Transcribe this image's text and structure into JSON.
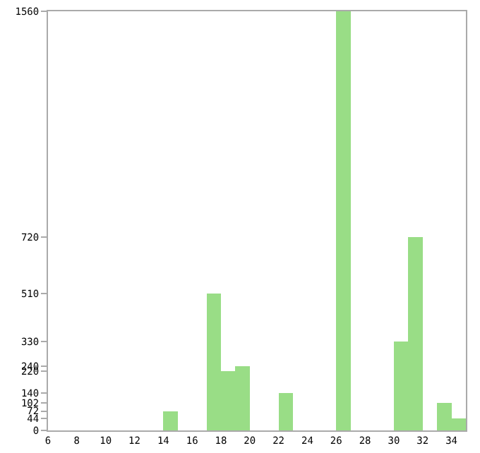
{
  "chart_data": {
    "type": "histogram",
    "bins": [
      6,
      7,
      8,
      9,
      10,
      11,
      12,
      13,
      14,
      15,
      16,
      17,
      18,
      19,
      20,
      21,
      22,
      23,
      24,
      25,
      26,
      27,
      28,
      29,
      30,
      31,
      32,
      33,
      34,
      35
    ],
    "values": [
      0,
      0,
      0,
      0,
      0,
      0,
      0,
      0,
      72,
      0,
      0,
      510,
      220,
      240,
      0,
      0,
      140,
      0,
      0,
      0,
      1560,
      0,
      0,
      0,
      330,
      720,
      0,
      102,
      44
    ],
    "color": "#99dd86",
    "xlim": [
      6,
      35
    ],
    "xticks": [
      6,
      8,
      10,
      12,
      14,
      16,
      18,
      20,
      22,
      24,
      26,
      28,
      30,
      32,
      34
    ],
    "ylim": [
      0,
      1560
    ],
    "yticks": [
      0,
      44,
      72,
      102,
      140,
      220,
      240,
      330,
      510,
      720,
      1560
    ],
    "grid": false
  }
}
